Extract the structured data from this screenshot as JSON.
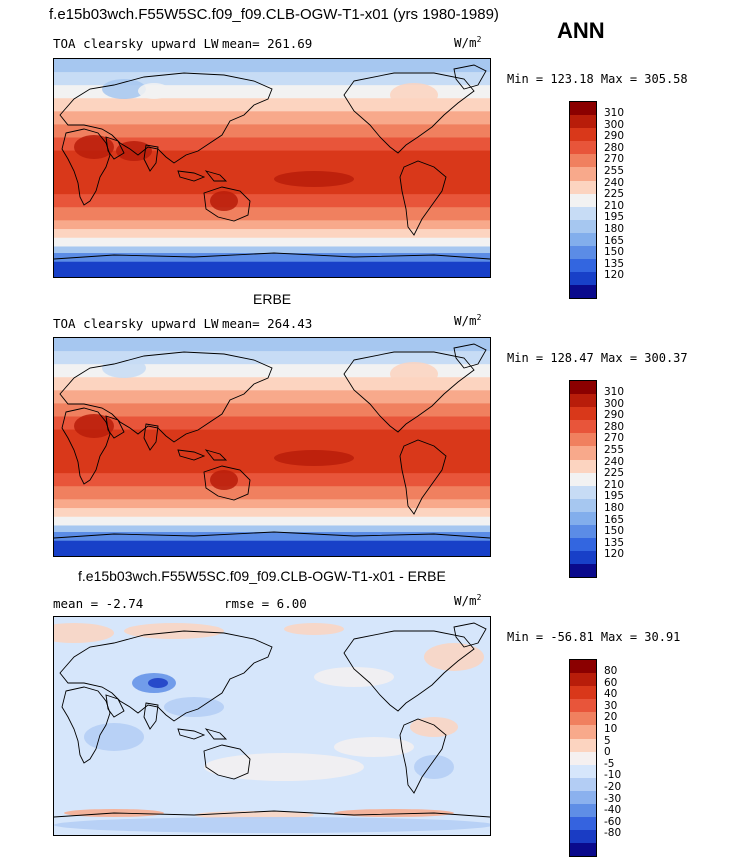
{
  "header": {
    "title": "f.e15b03wch.F55W5SC.f09_f09.CLB-OGW-T1-x01 (yrs 1980-1989)",
    "season": "ANN"
  },
  "panels": [
    {
      "title": "",
      "variable": "TOA clearsky upward LW",
      "stat_text": "mean= 261.69",
      "units": "W/m",
      "units_exp": "2",
      "minmax": "Min = 123.18 Max = 305.58",
      "colorbar_labels": [
        "310",
        "300",
        "290",
        "280",
        "270",
        "255",
        "240",
        "225",
        "210",
        "195",
        "180",
        "165",
        "150",
        "135",
        "120"
      ]
    },
    {
      "title": "ERBE",
      "variable": "TOA clearsky upward LW",
      "stat_text": "mean= 264.43",
      "units": "W/m",
      "units_exp": "2",
      "minmax": "Min = 128.47 Max = 300.37",
      "colorbar_labels": [
        "310",
        "300",
        "290",
        "280",
        "270",
        "255",
        "240",
        "225",
        "210",
        "195",
        "180",
        "165",
        "150",
        "135",
        "120"
      ]
    },
    {
      "title": "f.e15b03wch.F55W5SC.f09_f09.CLB-OGW-T1-x01 - ERBE",
      "variable": "",
      "stat_text": "mean =  -2.74",
      "stat_text2": "rmse =   6.00",
      "units": "W/m",
      "units_exp": "2",
      "minmax": "Min = -56.81 Max =  30.91",
      "colorbar_labels": [
        "80",
        "60",
        "40",
        "30",
        "20",
        "10",
        "5",
        "0",
        "-5",
        "-10",
        "-20",
        "-30",
        "-40",
        "-60",
        "-80"
      ]
    }
  ],
  "colors": {
    "abs_scale": [
      "#8b0000",
      "#b81d0a",
      "#d9381a",
      "#e8553a",
      "#f0805f",
      "#f8a98b",
      "#fcd4c0",
      "#f2f2f2",
      "#c7dcf5",
      "#a6c7f0",
      "#82aeec",
      "#5b8ce6",
      "#3366e0",
      "#1840c8",
      "#0a0a8c"
    ],
    "diff_scale": [
      "#8b0000",
      "#b81d0a",
      "#d9381a",
      "#e8553a",
      "#f0805f",
      "#f8a98b",
      "#fcd4c0",
      "#f5f0f0",
      "#d6e6fb",
      "#b3cdf4",
      "#8bb1ee",
      "#5f8ee6",
      "#3563df",
      "#1a3cc4",
      "#0a0a8c"
    ]
  },
  "chart_data": [
    {
      "type": "heatmap",
      "title": "TOA clearsky upward LW",
      "units": "W/m2",
      "mean": 261.69,
      "min": 123.18,
      "max": 305.58,
      "levels": [
        120,
        135,
        150,
        165,
        180,
        195,
        210,
        225,
        240,
        255,
        270,
        280,
        290,
        300,
        310
      ]
    },
    {
      "type": "heatmap",
      "title": "ERBE",
      "units": "W/m2",
      "mean": 264.43,
      "min": 128.47,
      "max": 300.37,
      "levels": [
        120,
        135,
        150,
        165,
        180,
        195,
        210,
        225,
        240,
        255,
        270,
        280,
        290,
        300,
        310
      ]
    },
    {
      "type": "heatmap",
      "title": "f.e15b03wch.F55W5SC.f09_f09.CLB-OGW-T1-x01 - ERBE",
      "units": "W/m2",
      "mean": -2.74,
      "rmse": 6.0,
      "min": -56.81,
      "max": 30.91,
      "levels": [
        -80,
        -60,
        -40,
        -30,
        -20,
        -10,
        -5,
        0,
        5,
        10,
        20,
        30,
        40,
        60,
        80
      ]
    }
  ]
}
